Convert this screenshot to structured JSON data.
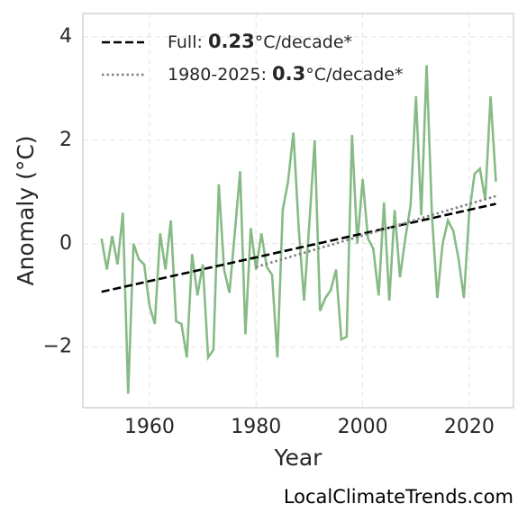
{
  "chart_data": {
    "type": "line",
    "xlabel": "Year",
    "ylabel": "Anomaly (°C)",
    "source": "LocalClimateTrends.com",
    "x": [
      1951,
      1952,
      1953,
      1954,
      1955,
      1956,
      1957,
      1958,
      1959,
      1960,
      1961,
      1962,
      1963,
      1964,
      1965,
      1966,
      1967,
      1968,
      1969,
      1970,
      1971,
      1972,
      1973,
      1974,
      1975,
      1976,
      1977,
      1978,
      1979,
      1980,
      1981,
      1982,
      1983,
      1984,
      1985,
      1986,
      1987,
      1988,
      1989,
      1990,
      1991,
      1992,
      1993,
      1994,
      1995,
      1996,
      1997,
      1998,
      1999,
      2000,
      2001,
      2002,
      2003,
      2004,
      2005,
      2006,
      2007,
      2008,
      2009,
      2010,
      2011,
      2012,
      2013,
      2014,
      2015,
      2016,
      2017,
      2018,
      2019,
      2020,
      2021,
      2022,
      2023,
      2024,
      2025
    ],
    "series": [
      {
        "color": "#86bb85",
        "values": [
          0.1,
          -0.5,
          0.15,
          -0.4,
          0.6,
          -2.9,
          0.0,
          -0.3,
          -0.4,
          -1.2,
          -1.55,
          0.2,
          -0.5,
          0.45,
          -1.5,
          -1.55,
          -2.2,
          -0.2,
          -1.0,
          -0.4,
          -2.2,
          -2.05,
          1.15,
          -0.5,
          -0.95,
          0.2,
          1.4,
          -1.75,
          0.3,
          -0.5,
          0.2,
          -0.45,
          -0.6,
          -2.2,
          0.65,
          1.2,
          2.15,
          0.3,
          -1.1,
          0.4,
          2.0,
          -1.3,
          -1.05,
          -0.9,
          -0.5,
          -1.85,
          -1.8,
          2.1,
          0.0,
          1.25,
          0.1,
          -0.1,
          -1.0,
          0.8,
          -1.1,
          0.65,
          -0.65,
          0.1,
          0.75,
          2.85,
          0.55,
          3.45,
          0.55,
          -1.05,
          0.0,
          0.45,
          0.25,
          -0.3,
          -1.05,
          0.6,
          1.35,
          1.45,
          0.85,
          2.85,
          1.2
        ]
      },
      {
        "name": [
          "Full: ",
          "0.23",
          "°C/decade*"
        ],
        "color": "#000000",
        "dash": "dashed",
        "x": [
          1951,
          2025
        ],
        "values": [
          -0.93,
          0.77
        ]
      },
      {
        "name": [
          "1980-2025: ",
          "0.3",
          "°C/decade*"
        ],
        "color": "#808080",
        "dash": "dotted",
        "x": [
          1980,
          2025
        ],
        "values": [
          -0.45,
          0.92
        ]
      }
    ],
    "xlim": [
      1947.5,
      2028.3
    ],
    "ylim": [
      -3.17,
      4.45
    ],
    "xticks": [
      1960,
      1980,
      2000,
      2020
    ],
    "yticks": [
      {
        "value": -2,
        "label": "−2"
      },
      0,
      2,
      4
    ],
    "grid": true,
    "legend": "upper left"
  }
}
